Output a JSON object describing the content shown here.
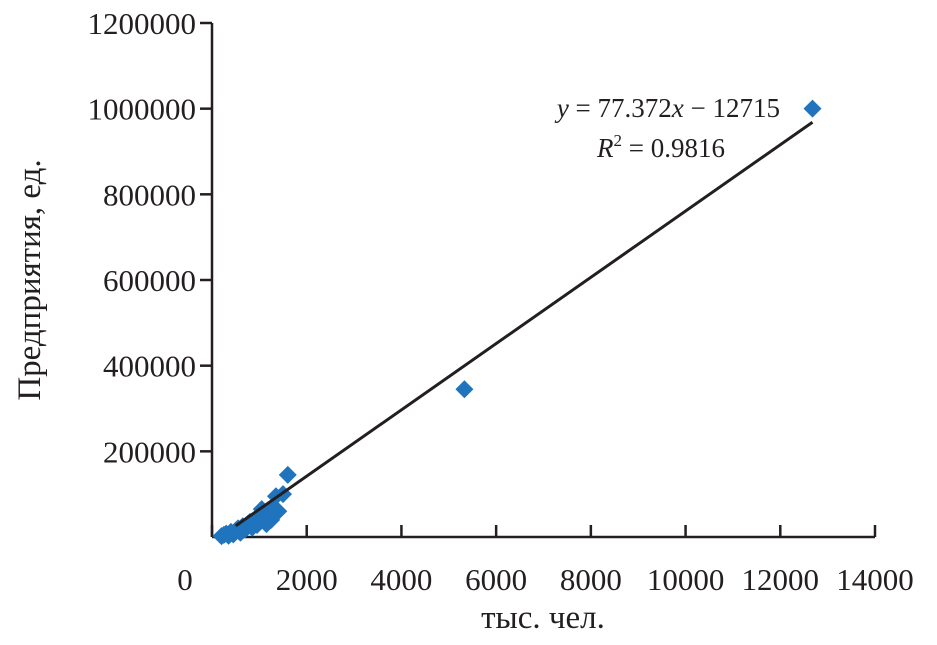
{
  "chart_data": {
    "type": "scatter",
    "xlabel": "тыс. чел.",
    "ylabel": "Предприятия, ед.",
    "xlim": [
      0,
      14000
    ],
    "ylim": [
      0,
      1200000
    ],
    "x_ticks": [
      "0",
      "2000",
      "4000",
      "6000",
      "8000",
      "10000",
      "12000",
      "14000"
    ],
    "y_ticks": [
      "200000",
      "400000",
      "600000",
      "800000",
      "1000000",
      "1200000"
    ],
    "grid": false,
    "marker_color": "#1f74bd",
    "trendline": {
      "slope": 77.372,
      "intercept": -12715,
      "x_range": [
        500,
        12680
      ],
      "color": "#231f20",
      "equation_label": "y = 77.372x − 12715",
      "r2_label": "R2 = 0.9816"
    },
    "points": [
      [
        200,
        2000
      ],
      [
        250,
        5000
      ],
      [
        300,
        8000
      ],
      [
        350,
        3000
      ],
      [
        400,
        12000
      ],
      [
        450,
        6000
      ],
      [
        500,
        15000
      ],
      [
        550,
        20000
      ],
      [
        600,
        10000
      ],
      [
        650,
        25000
      ],
      [
        700,
        18000
      ],
      [
        750,
        30000
      ],
      [
        800,
        35000
      ],
      [
        850,
        22000
      ],
      [
        900,
        40000
      ],
      [
        950,
        28000
      ],
      [
        1000,
        45000
      ],
      [
        1050,
        65000
      ],
      [
        1100,
        50000
      ],
      [
        1150,
        30000
      ],
      [
        1200,
        55000
      ],
      [
        1250,
        40000
      ],
      [
        1300,
        70000
      ],
      [
        1350,
        95000
      ],
      [
        1400,
        60000
      ],
      [
        1500,
        100000
      ],
      [
        1600,
        145000
      ],
      [
        5330,
        345000
      ],
      [
        12680,
        1000000
      ]
    ]
  }
}
